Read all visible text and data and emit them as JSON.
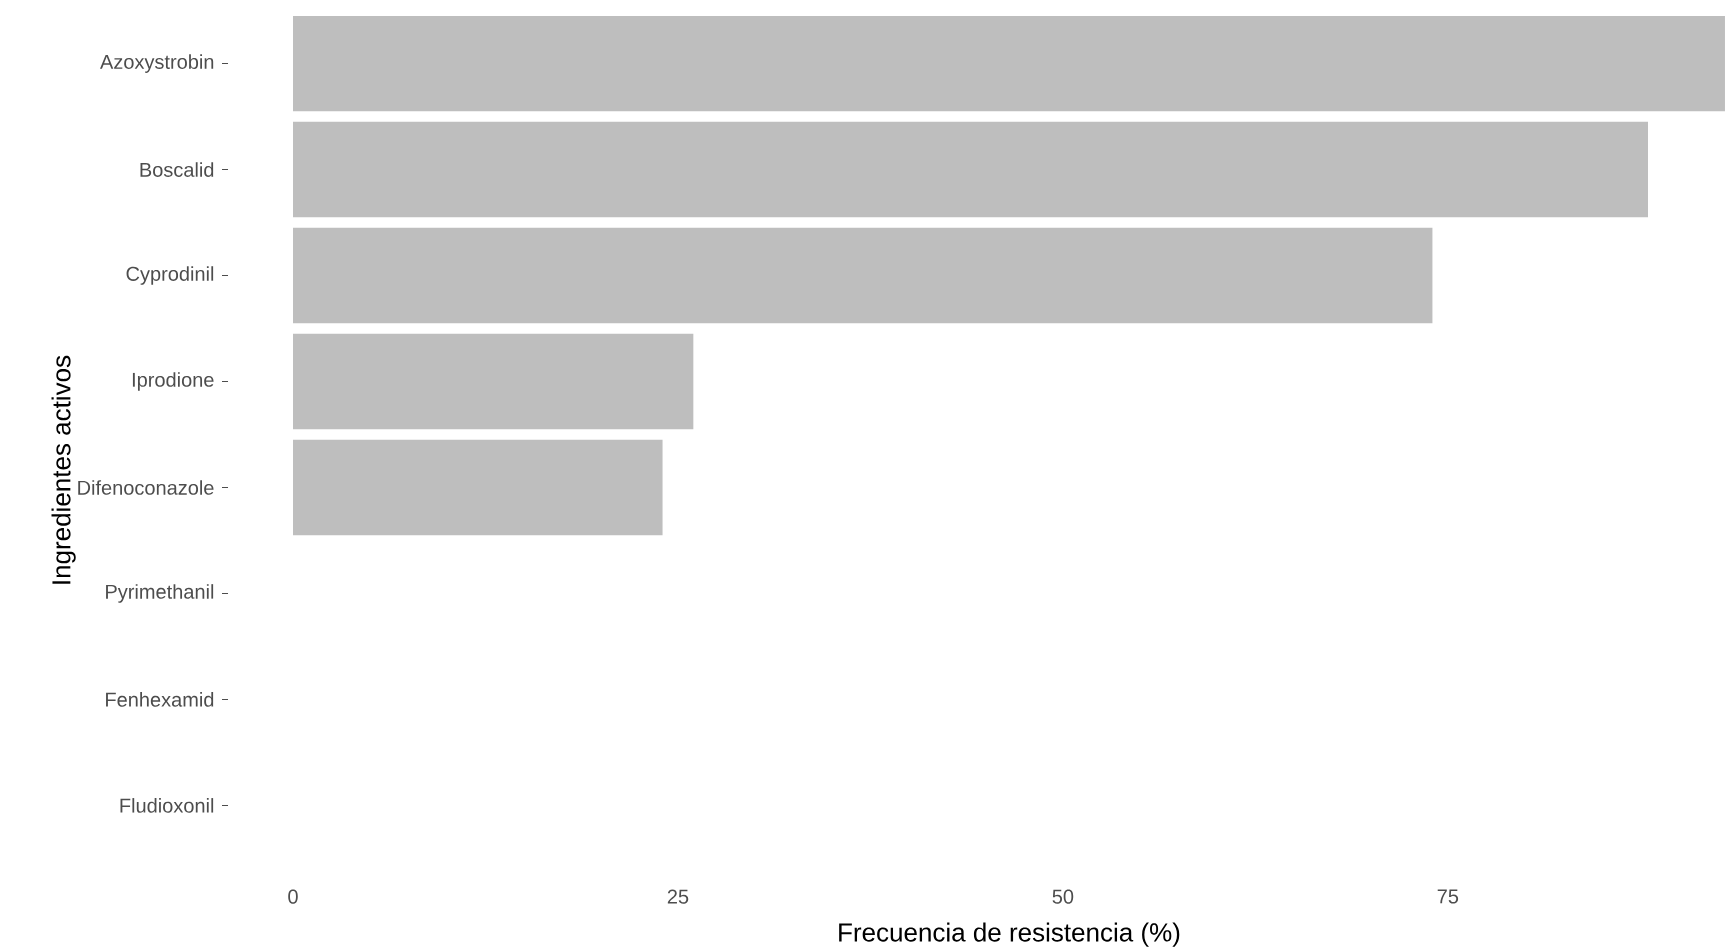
{
  "chart_data": {
    "type": "bar",
    "orientation": "horizontal",
    "categories": [
      "Azoxystrobin",
      "Boscalid",
      "Cyprodinil",
      "Iprodione",
      "Difenoconazole",
      "Pyrimethanil",
      "Fenhexamid",
      "Fludioxonil"
    ],
    "values": [
      93,
      88,
      74,
      26,
      24,
      0,
      0,
      0
    ],
    "color": "#bebebe",
    "xlim": [
      0,
      93
    ],
    "xticks": [
      0,
      25,
      50,
      75
    ],
    "xlabel": "Frecuencia de resistencia (%)",
    "ylabel": "Ingredientes activos"
  }
}
